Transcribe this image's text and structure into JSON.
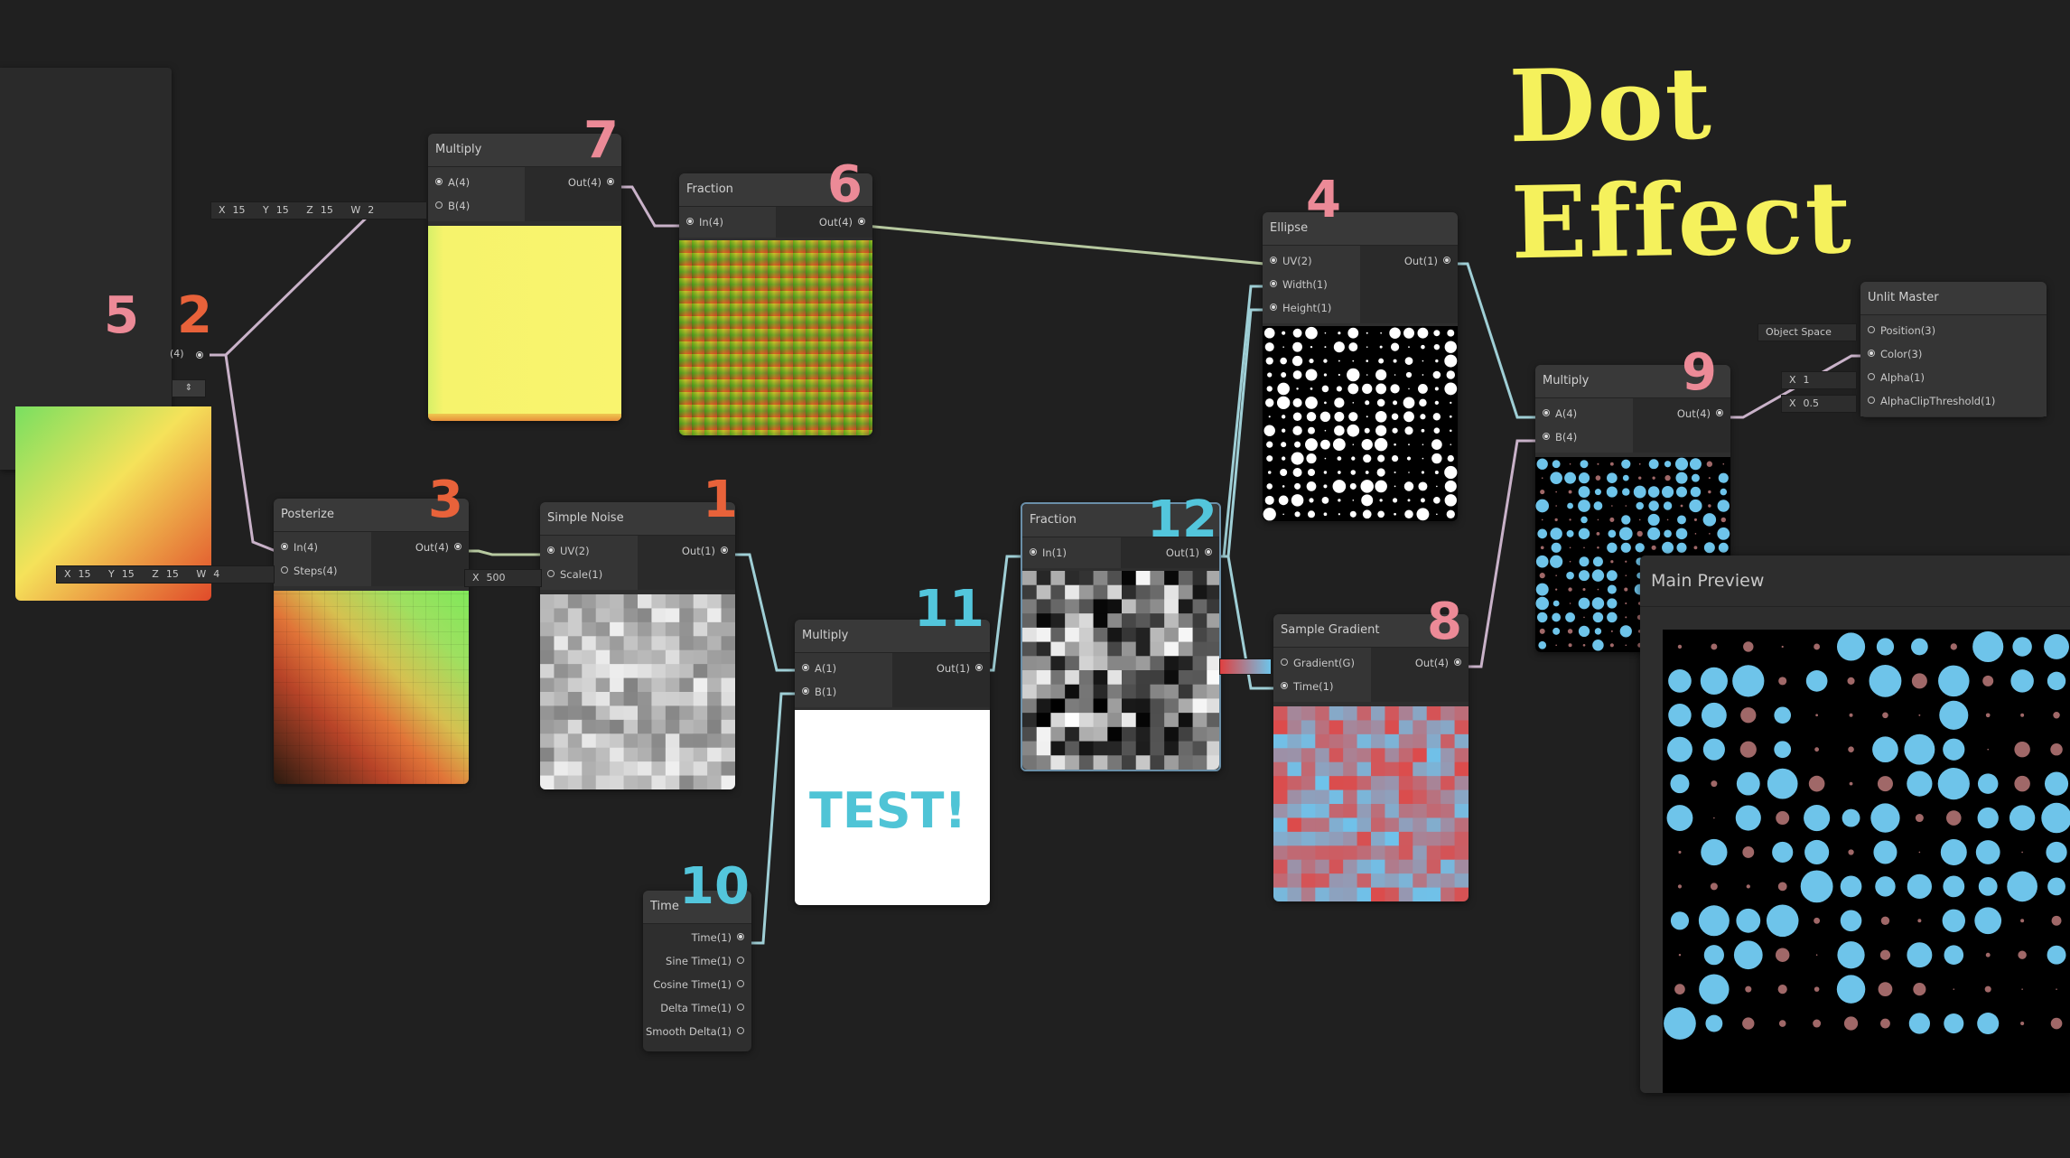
{
  "title": "Dot Effect",
  "colors": {
    "background": "#202020",
    "title": "#f5f15c",
    "badge_pink": "#ec8a97",
    "badge_orange": "#e8623a",
    "badge_cyan": "#53c6dc",
    "dot_blue": "#6ec4ea",
    "dot_red": "#a06868"
  },
  "badges": {
    "b1": "1",
    "b2": "2",
    "b3": "3",
    "b4": "4",
    "b5": "5",
    "b6": "6",
    "b7": "7",
    "b8": "8",
    "b9": "9",
    "b10": "10",
    "b11": "11",
    "b12": "12"
  },
  "nodes": {
    "multiply7": {
      "title": "Multiply",
      "in": [
        "A(4)",
        "B(4)"
      ],
      "out": [
        "Out(4)"
      ]
    },
    "fraction6": {
      "title": "Fraction",
      "in": [
        "In(4)"
      ],
      "out": [
        "Out(4)"
      ]
    },
    "ellipse4": {
      "title": "Ellipse",
      "in": [
        "UV(2)",
        "Width(1)",
        "Height(1)"
      ],
      "out": [
        "Out(1)"
      ]
    },
    "posterize3": {
      "title": "Posterize",
      "in": [
        "In(4)",
        "Steps(4)"
      ],
      "out": [
        "Out(4)"
      ]
    },
    "noise1": {
      "title": "Simple Noise",
      "in": [
        "UV(2)",
        "Scale(1)"
      ],
      "out": [
        "Out(1)"
      ]
    },
    "multiply11": {
      "title": "Multiply",
      "in": [
        "A(1)",
        "B(1)"
      ],
      "out": [
        "Out(1)"
      ]
    },
    "fraction12": {
      "title": "Fraction",
      "in": [
        "In(1)"
      ],
      "out": [
        "Out(1)"
      ]
    },
    "gradient8": {
      "title": "Sample Gradient",
      "in": [
        "Gradient(G)",
        "Time(1)"
      ],
      "out": [
        "Out(4)"
      ]
    },
    "multiply9": {
      "title": "Multiply",
      "in": [
        "A(4)",
        "B(4)"
      ],
      "out": [
        "Out(4)"
      ]
    },
    "time10": {
      "title": "Time",
      "out": [
        "Time(1)",
        "Sine Time(1)",
        "Cosine Time(1)",
        "Delta Time(1)",
        "Smooth Delta(1)"
      ]
    },
    "master": {
      "title": "Unlit Master",
      "in": [
        "Position(3)",
        "Color(3)",
        "Alpha(1)",
        "AlphaClipThreshold(1)"
      ]
    }
  },
  "fields": {
    "vec_b_multiply7": {
      "x": "15",
      "y": "15",
      "z": "15",
      "w": "2"
    },
    "vec_steps_posterize": {
      "x": "15",
      "y": "15",
      "z": "15",
      "w": "4"
    },
    "scale_noise": {
      "x": "500"
    },
    "alpha_master": {
      "x": "1"
    },
    "clip_master": {
      "x": "0.5"
    },
    "position_space": "Object Space"
  },
  "partial_labels": {
    "uv_out": "(4)"
  },
  "preview_text": "TEST!",
  "main_preview": {
    "title": "Main Preview"
  }
}
